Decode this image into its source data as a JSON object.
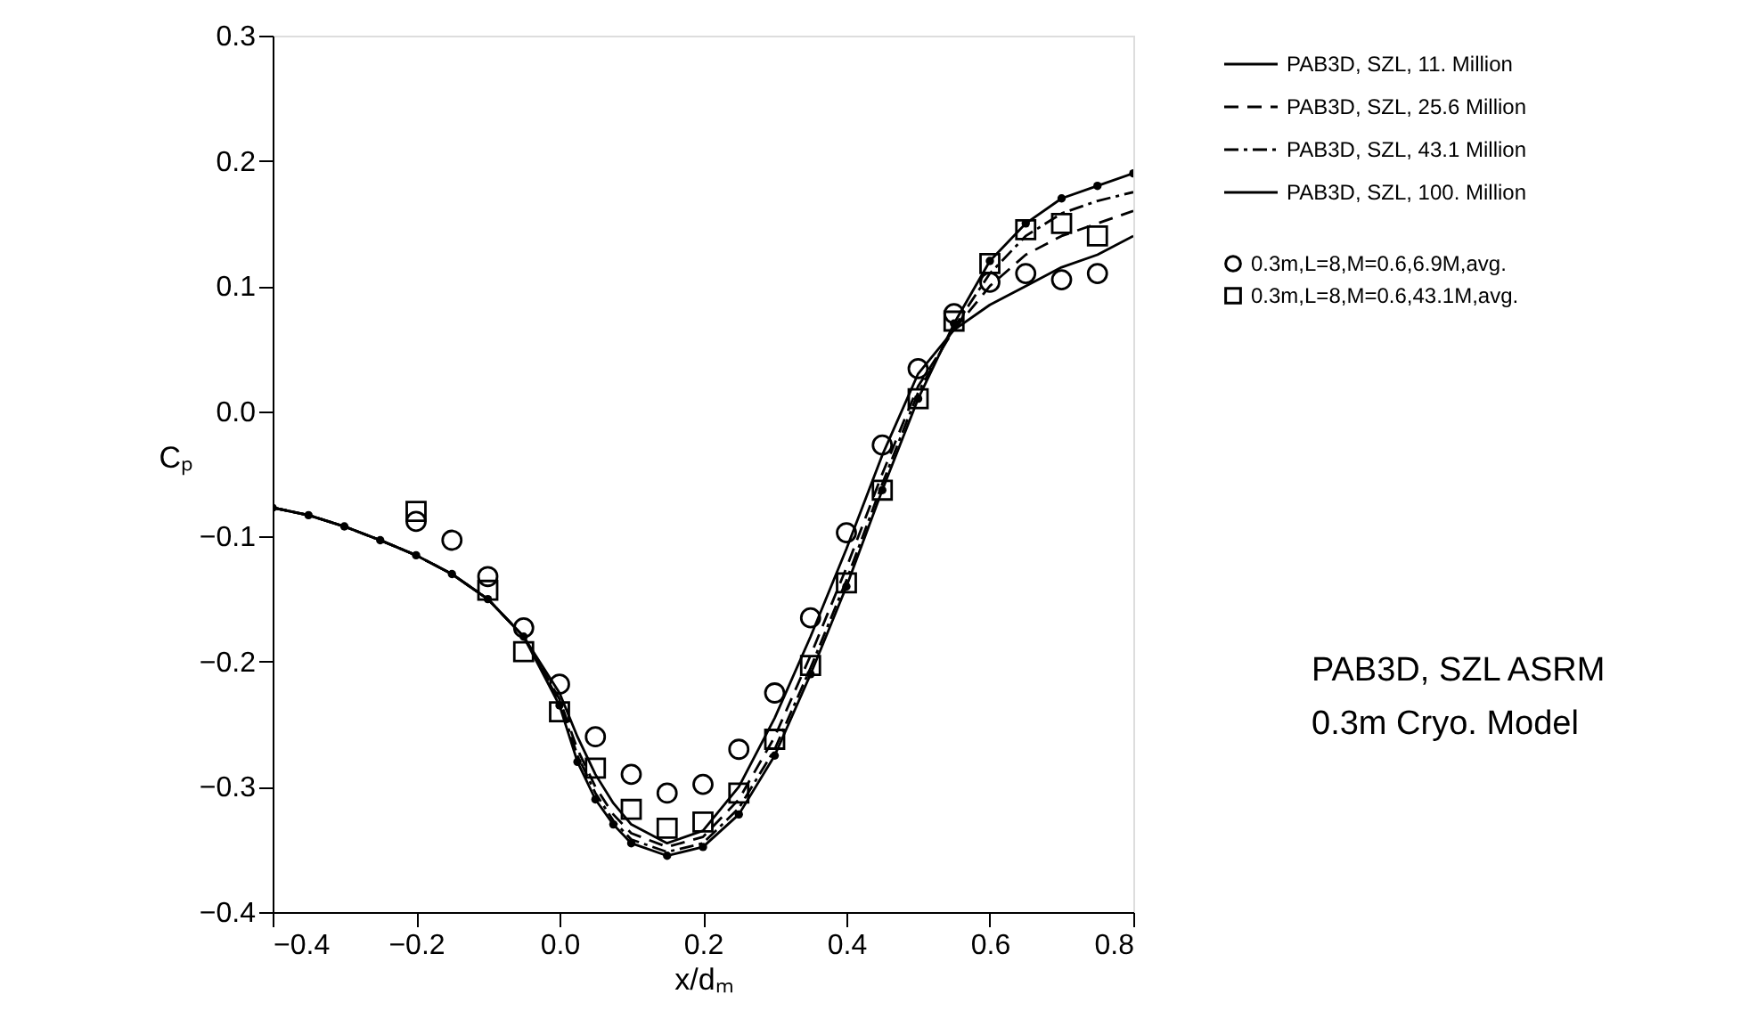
{
  "chart_data": {
    "type": "line",
    "xlabel": "x/dₘ",
    "ylabel": "Cₚ",
    "xlim": [
      -0.4,
      0.8
    ],
    "xticks": [
      -0.4,
      -0.2,
      {
        "value": 0,
        "label": "0.0"
      },
      0.2,
      0.4,
      0.6,
      0.8
    ],
    "ylim": [
      -0.4,
      0.3
    ],
    "yticks": [
      -0.4,
      -0.3,
      -0.2,
      -0.1,
      {
        "value": 0,
        "label": "0.0"
      },
      0.1,
      0.2,
      0.3
    ],
    "grid": false,
    "legend": "top right",
    "annotations": [
      "PAB3D, SZL ASRM",
      "0.3m Cryo. Model"
    ],
    "x": [
      -0.4,
      -0.35,
      -0.3,
      -0.25,
      -0.2,
      -0.15,
      -0.1,
      -0.05,
      0,
      0.025,
      0.05,
      0.075,
      0.1,
      0.15,
      0.2,
      0.25,
      0.3,
      0.35,
      0.4,
      0.45,
      0.5,
      0.55,
      0.6,
      0.65,
      0.7,
      0.75,
      0.8
    ],
    "series": [
      {
        "name": "PAB3D, SZL, 11. Million",
        "color": "#000000",
        "line_style": "solid",
        "marker": "none",
        "values": [
          -0.077,
          -0.083,
          -0.092,
          -0.103,
          -0.115,
          -0.13,
          -0.15,
          -0.18,
          -0.225,
          -0.26,
          -0.29,
          -0.313,
          -0.33,
          -0.345,
          -0.335,
          -0.3,
          -0.245,
          -0.18,
          -0.11,
          -0.035,
          0.03,
          0.065,
          0.085,
          0.1,
          0.115,
          0.125,
          0.14
        ]
      },
      {
        "name": "PAB3D, SZL, 25.6 Million",
        "color": "#000000",
        "line_style": "dashed",
        "marker": "none",
        "values": [
          -0.077,
          -0.083,
          -0.092,
          -0.103,
          -0.115,
          -0.13,
          -0.15,
          -0.18,
          -0.23,
          -0.27,
          -0.3,
          -0.322,
          -0.337,
          -0.348,
          -0.34,
          -0.31,
          -0.26,
          -0.195,
          -0.125,
          -0.05,
          0.02,
          0.065,
          0.1,
          0.125,
          0.14,
          0.15,
          0.16
        ]
      },
      {
        "name": "PAB3D, SZL, 43.1 Million",
        "color": "#000000",
        "line_style": "dashdot",
        "marker": "none",
        "values": [
          -0.077,
          -0.083,
          -0.092,
          -0.103,
          -0.115,
          -0.13,
          -0.15,
          -0.18,
          -0.232,
          -0.275,
          -0.305,
          -0.327,
          -0.342,
          -0.352,
          -0.345,
          -0.317,
          -0.27,
          -0.205,
          -0.135,
          -0.058,
          0.015,
          0.067,
          0.11,
          0.14,
          0.158,
          0.168,
          0.175
        ]
      },
      {
        "name": "PAB3D, SZL, 100. Million",
        "color": "#000000",
        "line_style": "solid",
        "marker": "circle",
        "values": [
          -0.077,
          -0.083,
          -0.092,
          -0.103,
          -0.115,
          -0.13,
          -0.15,
          -0.18,
          -0.235,
          -0.28,
          -0.31,
          -0.33,
          -0.345,
          -0.355,
          -0.348,
          -0.322,
          -0.275,
          -0.21,
          -0.14,
          -0.063,
          0.01,
          0.07,
          0.12,
          0.15,
          0.17,
          0.18,
          0.19
        ]
      },
      {
        "name": "0.3m,L=8,M=0.6,6.9M,avg.",
        "type": "scatter",
        "color": "#000000",
        "marker": "circle",
        "x": [
          -0.2,
          -0.15,
          -0.1,
          -0.05,
          0,
          0.05,
          0.1,
          0.15,
          0.2,
          0.25,
          0.3,
          0.35,
          0.4,
          0.45,
          0.5,
          0.55,
          0.6,
          0.65,
          0.7,
          0.75
        ],
        "values": [
          -0.088,
          -0.103,
          -0.132,
          -0.173,
          -0.218,
          -0.26,
          -0.29,
          -0.305,
          -0.298,
          -0.27,
          -0.225,
          -0.165,
          -0.097,
          -0.027,
          0.034,
          0.078,
          0.103,
          0.11,
          0.105,
          0.11
        ]
      },
      {
        "name": "0.3m,L=8,M=0.6,43.1M,avg.",
        "type": "scatter",
        "color": "#000000",
        "marker": "square",
        "x": [
          -0.2,
          -0.1,
          -0.05,
          0,
          0.05,
          0.1,
          0.15,
          0.2,
          0.25,
          0.3,
          0.35,
          0.4,
          0.45,
          0.5,
          0.55,
          0.6,
          0.65,
          0.7,
          0.75
        ],
        "values": [
          -0.08,
          -0.143,
          -0.192,
          -0.24,
          -0.285,
          -0.318,
          -0.333,
          -0.328,
          -0.305,
          -0.262,
          -0.203,
          -0.137,
          -0.063,
          0.01,
          0.072,
          0.118,
          0.145,
          0.15,
          0.14
        ]
      }
    ]
  }
}
